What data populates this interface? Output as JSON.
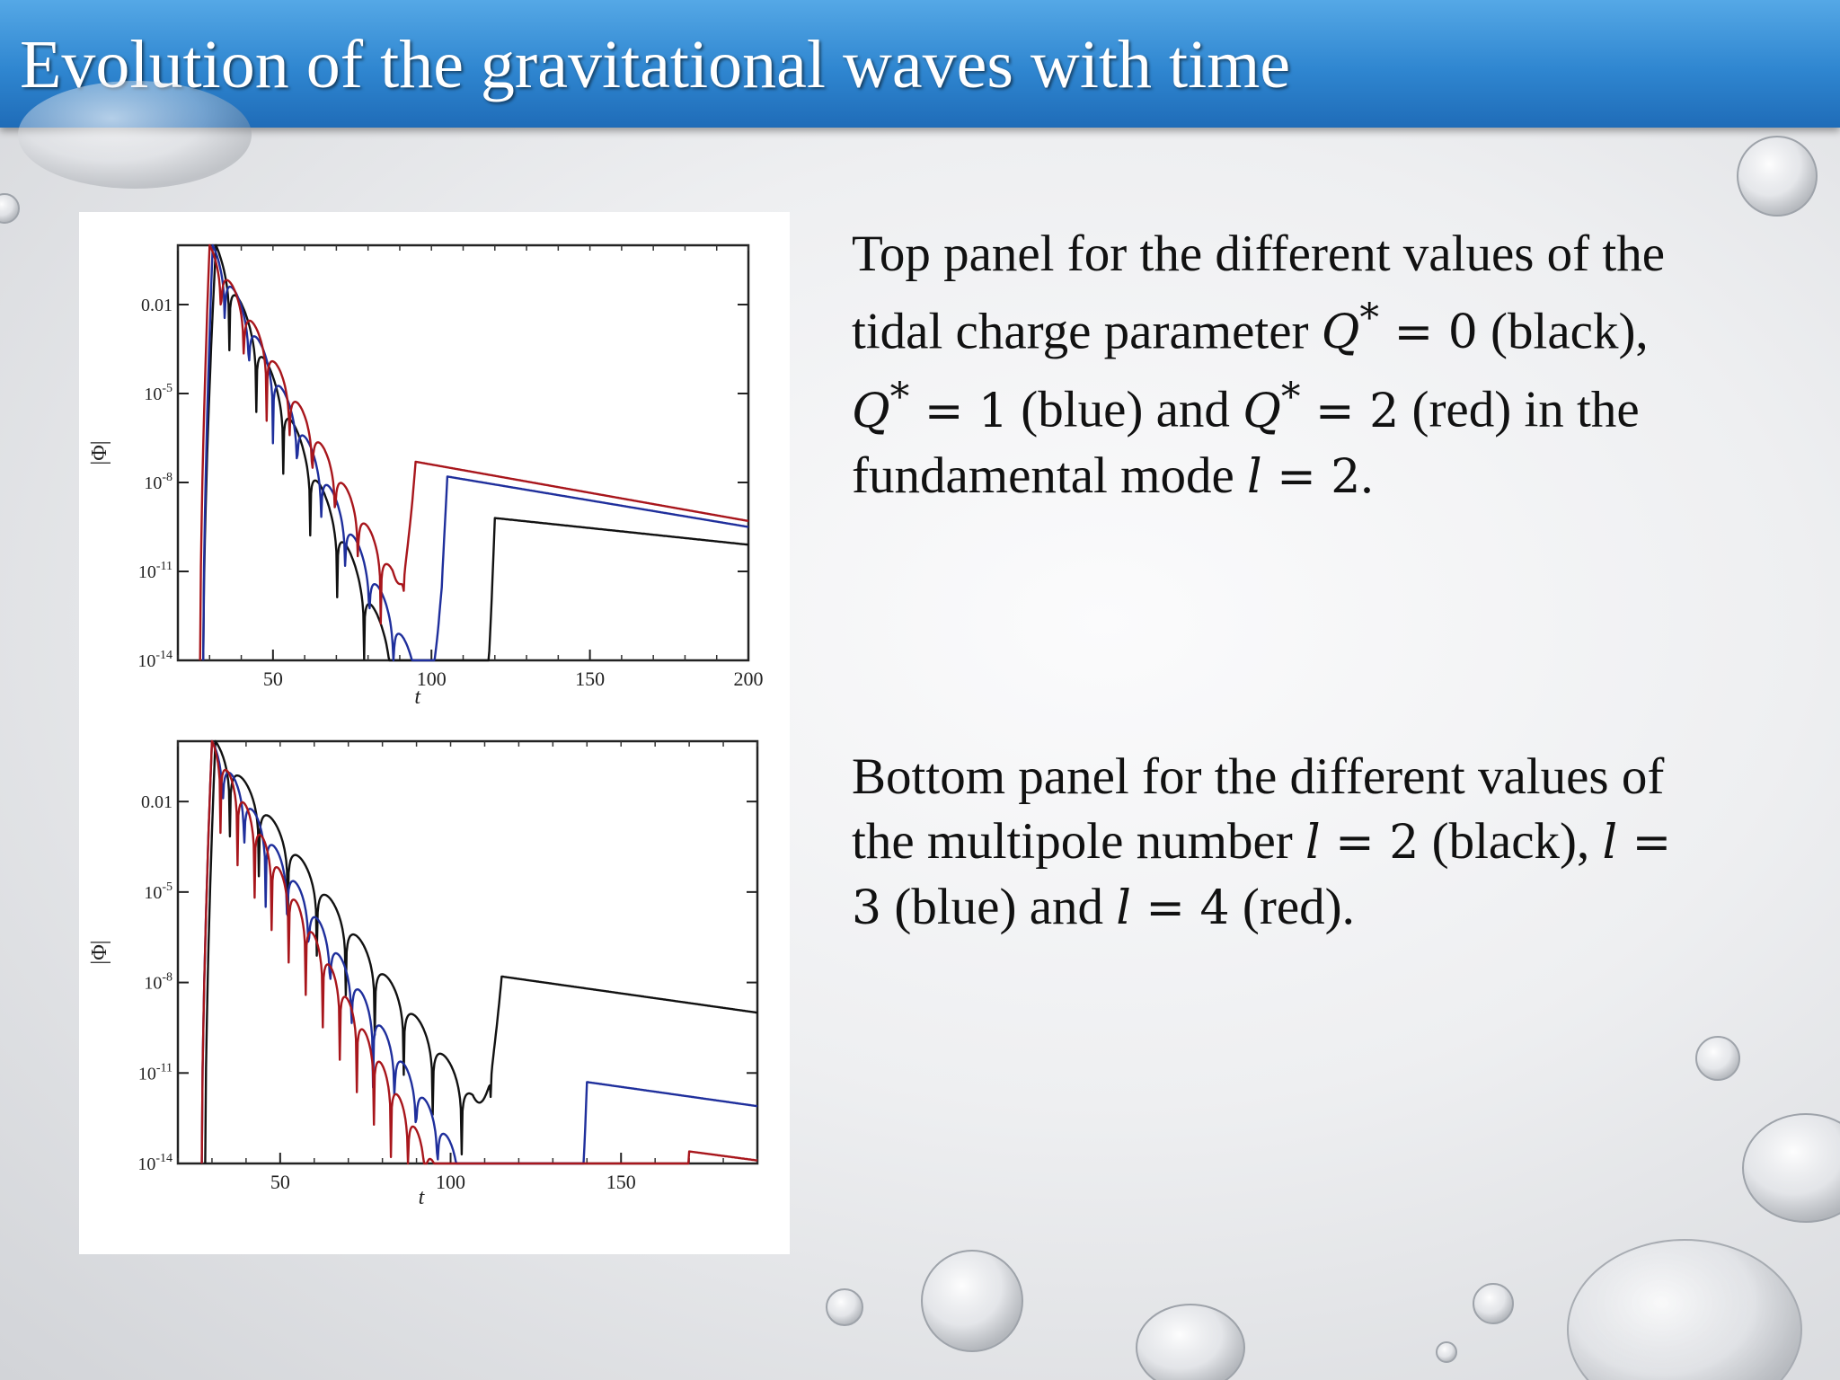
{
  "slide": {
    "title": "Evolution of the gravitational waves with time"
  },
  "text_top": {
    "l1": "Top panel for the different values of the",
    "l2a": "tidal charge parameter ",
    "l2q": "Q",
    "l2sup": "*",
    "l2m": " = 0",
    "l2b": " (black),",
    "l3q": "Q",
    "l3sup": "*",
    "l3m": " = 1",
    "l3b": " (blue) and ",
    "l3q2": "Q",
    "l3sup2": "*",
    "l3m2": " = 2",
    "l3c": " (red) in the",
    "l4a": "fundamental mode ",
    "l4l": "l",
    "l4m": " = 2",
    "l4b": "."
  },
  "text_bottom": {
    "l1": "Bottom panel for the different values of",
    "l2a": "the multipole number ",
    "l2l": "l",
    "l2m": " = 2",
    "l2b": " (black), ",
    "l2l2": "l",
    "l2m2": " =",
    "l3m": "3",
    "l3a": " (blue) and ",
    "l3l": "l",
    "l3m2": " = 4",
    "l3b": " (red)."
  },
  "colors": {
    "black_series": "#111111",
    "blue_series": "#1f2f9c",
    "red_series": "#a8161c",
    "title_bar": "#2f86d0"
  },
  "chart_data": [
    {
      "type": "line",
      "panel": "top",
      "xlabel": "t",
      "ylabel": "|Φ|",
      "xlim": [
        20,
        200
      ],
      "ylim_log10": [
        -14,
        0
      ],
      "y_scale": "log",
      "xticks": [
        50,
        100,
        150,
        200
      ],
      "xtick_labels": [
        "50",
        "100",
        "150",
        "200"
      ],
      "yticks_log10": [
        -2,
        -5,
        -8,
        -11,
        -14
      ],
      "ytick_labels": [
        {
          "base": "0.01",
          "exp": ""
        },
        {
          "base": "10",
          "exp": "-5"
        },
        {
          "base": "10",
          "exp": "-8"
        },
        {
          "base": "10",
          "exp": "-11"
        },
        {
          "base": "10",
          "exp": "-14"
        }
      ],
      "series": [
        {
          "name": "Q* = 0",
          "color": "black",
          "peak_t": 32,
          "peak_log10": 0,
          "t0": 28,
          "decay": 0.245,
          "period": 8.5,
          "depth": 2.5,
          "tail_start": 120,
          "tail_log10": -9.2,
          "tail_end_log10": -10.1
        },
        {
          "name": "Q* = 1",
          "color": "blue",
          "peak_t": 31,
          "peak_log10": 0,
          "t0": 28,
          "decay": 0.22,
          "period": 7.6,
          "depth": 2.5,
          "tail_start": 105,
          "tail_log10": -7.8,
          "tail_end_log10": -9.5
        },
        {
          "name": "Q* = 2",
          "color": "red",
          "peak_t": 30,
          "peak_log10": 0,
          "t0": 27,
          "decay": 0.19,
          "period": 7.2,
          "depth": 2.5,
          "tail_start": 95,
          "tail_log10": -7.3,
          "tail_end_log10": -9.3
        }
      ]
    },
    {
      "type": "line",
      "panel": "bottom",
      "xlabel": "t",
      "ylabel": "|Φ|",
      "xlim": [
        20,
        190
      ],
      "ylim_log10": [
        -14,
        0
      ],
      "y_scale": "log",
      "xticks": [
        50,
        100,
        150
      ],
      "xtick_labels": [
        "50",
        "100",
        "150"
      ],
      "yticks_log10": [
        -2,
        -5,
        -8,
        -11,
        -14
      ],
      "ytick_labels": [
        {
          "base": "0.01",
          "exp": ""
        },
        {
          "base": "10",
          "exp": "-5"
        },
        {
          "base": "10",
          "exp": "-8"
        },
        {
          "base": "10",
          "exp": "-11"
        },
        {
          "base": "10",
          "exp": "-14"
        }
      ],
      "series": [
        {
          "name": "l = 2",
          "color": "black",
          "peak_t": 31,
          "peak_log10": 0,
          "t0": 28,
          "decay": 0.155,
          "period": 8.5,
          "depth": 2.5,
          "tail_start": 115,
          "tail_log10": -7.8,
          "tail_end_log10": -9.0
        },
        {
          "name": "l = 3",
          "color": "blue",
          "peak_t": 30,
          "peak_log10": 0,
          "t0": 27,
          "decay": 0.19,
          "period": 6.3,
          "depth": 2.5,
          "tail_start": 140,
          "tail_log10": -11.3,
          "tail_end_log10": -12.1
        },
        {
          "name": "l = 4",
          "color": "red",
          "peak_t": 30,
          "peak_log10": 0,
          "t0": 27,
          "decay": 0.215,
          "period": 5.0,
          "depth": 2.5,
          "tail_start": 170,
          "tail_log10": -13.6,
          "tail_end_log10": -13.9
        }
      ]
    }
  ]
}
